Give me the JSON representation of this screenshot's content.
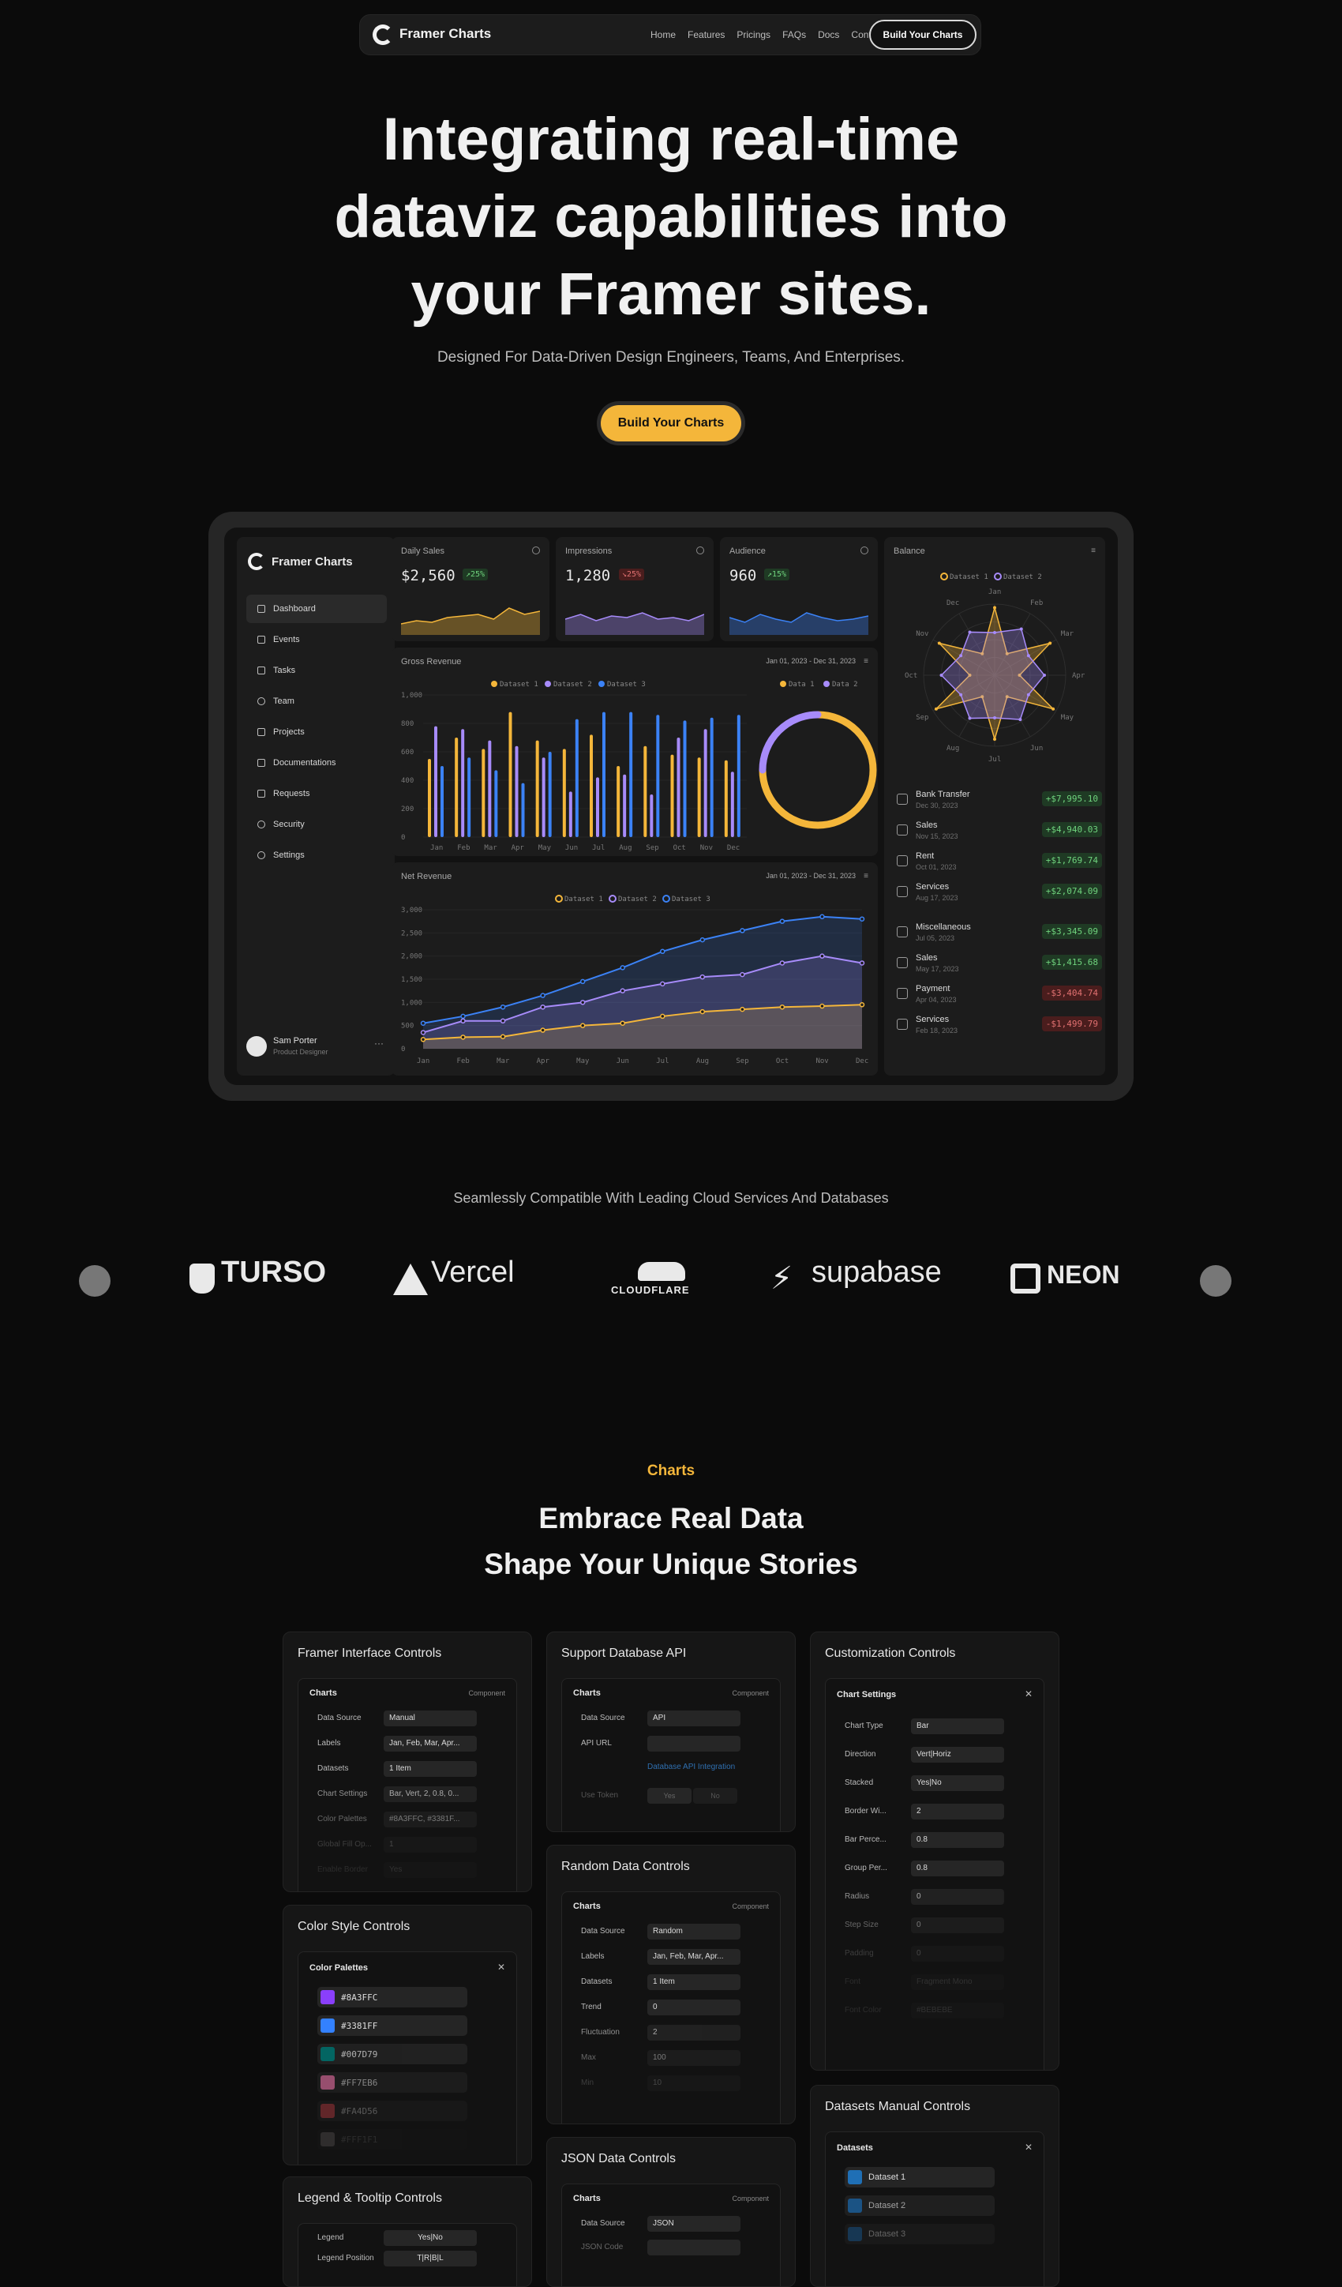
{
  "nav": {
    "brand": "Framer Charts",
    "links": [
      "Home",
      "Features",
      "Pricings",
      "FAQs",
      "Docs",
      "Contact"
    ],
    "cta": "Build Your Charts"
  },
  "hero": {
    "title_lines": [
      "Integrating real-time",
      "dataviz capabilities into",
      "your Framer sites."
    ],
    "subtitle": "Designed For Data-Driven Design Engineers, Teams, And Enterprises.",
    "cta": "Build Your Charts"
  },
  "dashboard": {
    "brand": "Framer Charts",
    "sidebar": [
      "Dashboard",
      "Events",
      "Tasks",
      "Team",
      "Projects",
      "Documentations",
      "Requests",
      "Security",
      "Settings"
    ],
    "user": {
      "name": "Sam Porter",
      "role": "Product Designer"
    },
    "kpis": [
      {
        "label": "Daily Sales",
        "value": "$2,560",
        "badge": "↗25%",
        "trend": "up",
        "color": "#f4b63a"
      },
      {
        "label": "Impressions",
        "value": "1,280",
        "badge": "↘25%",
        "trend": "down",
        "color": "#a78bfa"
      },
      {
        "label": "Audience",
        "value": "960",
        "badge": "↗15%",
        "trend": "up",
        "color": "#3b82f6"
      }
    ],
    "gross": {
      "title": "Gross Revenue",
      "range": "Jan 01, 2023 - Dec 31, 2023",
      "legend": [
        "Dataset 1",
        "Dataset 2",
        "Dataset 3"
      ],
      "donut_legend": [
        "Data 1",
        "Data 2"
      ],
      "yticks": [
        "1,000",
        "800",
        "600",
        "400",
        "200",
        "0"
      ],
      "months": [
        "Jan",
        "Feb",
        "Mar",
        "Apr",
        "May",
        "Jun",
        "Jul",
        "Aug",
        "Sep",
        "Oct",
        "Nov",
        "Dec"
      ]
    },
    "net": {
      "title": "Net Revenue",
      "range": "Jan 01, 2023 - Dec 31, 2023",
      "legend": [
        "Dataset 1",
        "Dataset 2",
        "Dataset 3"
      ],
      "yticks": [
        "3,000",
        "2,500",
        "2,000",
        "1,500",
        "1,000",
        "500",
        "0"
      ],
      "months": [
        "Jan",
        "Feb",
        "Mar",
        "Apr",
        "May",
        "Jun",
        "Jul",
        "Aug",
        "Sep",
        "Oct",
        "Nov",
        "Dec"
      ]
    },
    "balance": {
      "title": "Balance",
      "legend": [
        "Dataset 1",
        "Dataset 2"
      ],
      "months": [
        "Jan",
        "Feb",
        "Mar",
        "Apr",
        "May",
        "Jun",
        "Jul",
        "Aug",
        "Sep",
        "Oct",
        "Nov",
        "Dec"
      ],
      "transactions": [
        {
          "name": "Bank Transfer",
          "date": "Dec 30, 2023",
          "amount": "+$7,995.10",
          "type": "pos"
        },
        {
          "name": "Sales",
          "date": "Nov 15, 2023",
          "amount": "+$4,940.03",
          "type": "pos"
        },
        {
          "name": "Rent",
          "date": "Oct 01, 2023",
          "amount": "+$1,769.74",
          "type": "pos"
        },
        {
          "name": "Services",
          "date": "Aug 17, 2023",
          "amount": "+$2,074.09",
          "type": "pos"
        },
        {
          "name": "Miscellaneous",
          "date": "Jul 05, 2023",
          "amount": "+$3,345.09",
          "type": "pos"
        },
        {
          "name": "Sales",
          "date": "May 17, 2023",
          "amount": "+$1,415.68",
          "type": "pos"
        },
        {
          "name": "Payment",
          "date": "Apr 04, 2023",
          "amount": "-$3,404.74",
          "type": "neg"
        },
        {
          "name": "Services",
          "date": "Feb 18, 2023",
          "amount": "-$1,499.79",
          "type": "neg"
        }
      ]
    }
  },
  "chart_data": [
    {
      "type": "bar",
      "title": "Gross Revenue",
      "categories": [
        "Jan",
        "Feb",
        "Mar",
        "Apr",
        "May",
        "Jun",
        "Jul",
        "Aug",
        "Sep",
        "Oct",
        "Nov",
        "Dec"
      ],
      "ylim": [
        0,
        1000
      ],
      "series": [
        {
          "name": "Dataset 1",
          "color": "#f4b63a",
          "values": [
            550,
            700,
            620,
            880,
            680,
            620,
            720,
            500,
            640,
            580,
            560,
            540
          ]
        },
        {
          "name": "Dataset 2",
          "color": "#a78bfa",
          "values": [
            780,
            760,
            680,
            640,
            560,
            320,
            420,
            440,
            300,
            700,
            760,
            460
          ]
        },
        {
          "name": "Dataset 3",
          "color": "#3b82f6",
          "values": [
            500,
            560,
            470,
            380,
            600,
            830,
            880,
            880,
            860,
            820,
            840,
            860
          ]
        }
      ]
    },
    {
      "type": "pie",
      "legend": [
        "Data 1",
        "Data 2"
      ],
      "values": [
        75,
        25
      ],
      "colors": [
        "#f4b63a",
        "#a78bfa"
      ]
    },
    {
      "type": "area",
      "title": "Net Revenue",
      "categories": [
        "Jan",
        "Feb",
        "Mar",
        "Apr",
        "May",
        "Jun",
        "Jul",
        "Aug",
        "Sep",
        "Oct",
        "Nov",
        "Dec"
      ],
      "ylim": [
        0,
        3000
      ],
      "series": [
        {
          "name": "Dataset 1",
          "color": "#f4b63a",
          "values": [
            200,
            250,
            260,
            400,
            500,
            550,
            700,
            800,
            850,
            900,
            920,
            950
          ]
        },
        {
          "name": "Dataset 2",
          "color": "#a78bfa",
          "values": [
            350,
            600,
            600,
            900,
            1000,
            1250,
            1400,
            1550,
            1600,
            1850,
            2000,
            1850
          ]
        },
        {
          "name": "Dataset 3",
          "color": "#3b82f6",
          "values": [
            550,
            700,
            900,
            1150,
            1450,
            1750,
            2100,
            2350,
            2550,
            2750,
            2850,
            2800
          ]
        }
      ]
    },
    {
      "type": "radar",
      "title": "Balance",
      "categories": [
        "Jan",
        "Feb",
        "Mar",
        "Apr",
        "May",
        "Jun",
        "Jul",
        "Aug",
        "Sep",
        "Oct",
        "Nov",
        "Dec"
      ],
      "series": [
        {
          "name": "Dataset 1",
          "color": "#f4b63a",
          "values": [
            95,
            35,
            90,
            35,
            95,
            35,
            90,
            35,
            95,
            35,
            90,
            35
          ]
        },
        {
          "name": "Dataset 2",
          "color": "#a78bfa",
          "values": [
            60,
            75,
            55,
            70,
            55,
            72,
            60,
            70,
            55,
            75,
            55,
            70
          ]
        }
      ]
    }
  ],
  "compat": {
    "title": "Seamlessly Compatible With Leading Cloud Services And Databases",
    "logos": [
      "TURSO",
      "Vercel",
      "CLOUDFLARE",
      "supabase",
      "NEON"
    ]
  },
  "features": {
    "eyebrow": "Charts",
    "title_lines": [
      "Embrace Real Data",
      "Shape Your Unique Stories"
    ],
    "cards": {
      "framer": {
        "title": "Framer Interface Controls",
        "panel": "Charts",
        "tag": "Component",
        "rows": [
          [
            "Data Source",
            "Manual"
          ],
          [
            "Labels",
            "Jan, Feb, Mar, Apr..."
          ],
          [
            "Datasets",
            "1 Item"
          ],
          [
            "Chart Settings",
            "Bar, Vert, 2, 0.8, 0..."
          ],
          [
            "Color Palettes",
            "#8A3FFC, #3381F..."
          ],
          [
            "Global Fill Op...",
            "1"
          ],
          [
            "Enable Border",
            "Yes"
          ]
        ]
      },
      "db": {
        "title": "Support Database API",
        "panel": "Charts",
        "tag": "Component",
        "rows": [
          [
            "Data Source",
            "API"
          ],
          [
            "API URL",
            ""
          ]
        ],
        "link": "Database API Integration",
        "token": "Use Token",
        "yes": "Yes",
        "no": "No"
      },
      "random": {
        "title": "Random Data Controls",
        "panel": "Charts",
        "tag": "Component",
        "rows": [
          [
            "Data Source",
            "Random"
          ],
          [
            "Labels",
            "Jan, Feb, Mar, Apr..."
          ],
          [
            "Datasets",
            "1 Item"
          ],
          [
            "Trend",
            "0"
          ],
          [
            "Fluctuation",
            "2"
          ],
          [
            "Max",
            "100"
          ],
          [
            "Min",
            "10"
          ]
        ]
      },
      "json": {
        "title": "JSON Data Controls",
        "panel": "Charts",
        "tag": "Component",
        "rows": [
          [
            "Data Source",
            "JSON"
          ],
          [
            "JSON Code",
            ""
          ]
        ]
      },
      "custom": {
        "title": "Customization Controls",
        "panel": "Chart Settings",
        "rows": [
          [
            "Chart Type",
            "Bar"
          ],
          [
            "Direction",
            "Vert|Horiz"
          ],
          [
            "Stacked",
            "Yes|No"
          ],
          [
            "Border Wi...",
            "2"
          ],
          [
            "Bar Perce...",
            "0.8"
          ],
          [
            "Group Per...",
            "0.8"
          ],
          [
            "Radius",
            "0"
          ],
          [
            "Step Size",
            "0"
          ],
          [
            "Padding",
            "0"
          ],
          [
            "Font",
            "Fragment Mono"
          ],
          [
            "Font Color",
            "#BEBEBE"
          ]
        ]
      },
      "color": {
        "title": "Color Style Controls",
        "panel": "Color Palettes",
        "swatches": [
          [
            "#8A3FFC",
            "#8A3FFC"
          ],
          [
            "#3381FF",
            "#3381FF"
          ],
          [
            "#007D79",
            "#007D79"
          ],
          [
            "#FF7EB6",
            "#FF7EB6"
          ],
          [
            "#FA4D56",
            "#FA4D56"
          ],
          [
            "#FFF1F1",
            "#FFF1F1"
          ]
        ]
      },
      "datasets": {
        "title": "Datasets Manual Controls",
        "panel": "Datasets",
        "items": [
          "Dataset 1",
          "Dataset 2",
          "Dataset 3"
        ]
      },
      "legend": {
        "title": "Legend & Tooltip Controls",
        "rows": [
          [
            "Legend",
            "Yes|No"
          ],
          [
            "Legend Position",
            "T|R|B|L"
          ]
        ]
      }
    }
  }
}
